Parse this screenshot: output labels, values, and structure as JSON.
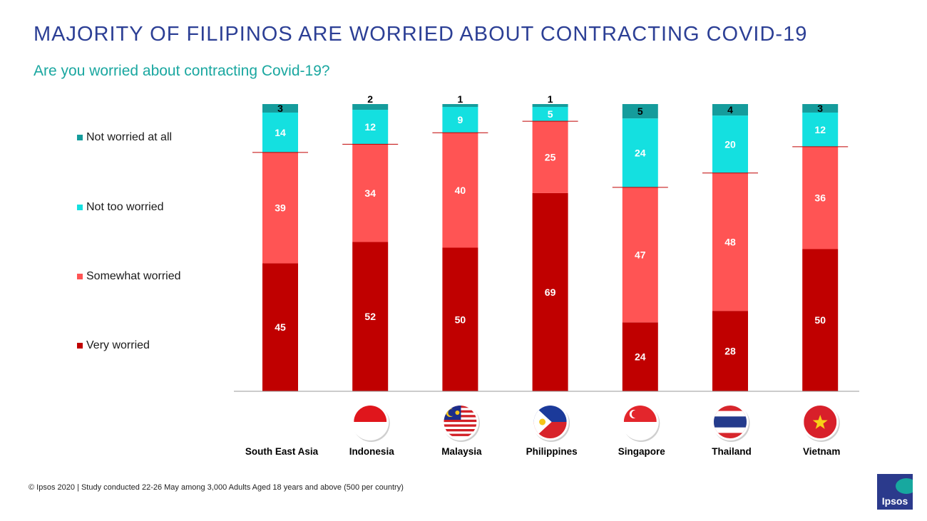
{
  "header": {
    "title": "MAJORITY OF FILIPINOS ARE WORRIED ABOUT CONTRACTING COVID-19",
    "subtitle": "Are you worried about contracting Covid-19?"
  },
  "legend": [
    {
      "label": "Not worried at all",
      "color": "#159c9c"
    },
    {
      "label": "Not too worried",
      "color": "#14e0e0"
    },
    {
      "label": "Somewhat worried",
      "color": "#ff5454"
    },
    {
      "label": "Very worried",
      "color": "#c00000"
    }
  ],
  "chart_data": {
    "type": "bar",
    "stacked": true,
    "title": "Are you worried about contracting Covid-19?",
    "categories": [
      "South East Asia",
      "Indonesia",
      "Malaysia",
      "Philippines",
      "Singapore",
      "Thailand",
      "Vietnam"
    ],
    "series": [
      {
        "name": "Very worried",
        "color": "#c00000",
        "values": [
          45,
          52,
          50,
          69,
          24,
          28,
          50
        ]
      },
      {
        "name": "Somewhat worried",
        "color": "#ff5454",
        "values": [
          39,
          34,
          40,
          25,
          47,
          48,
          36
        ]
      },
      {
        "name": "Not too worried",
        "color": "#14e0e0",
        "values": [
          14,
          12,
          9,
          5,
          24,
          20,
          12
        ]
      },
      {
        "name": "Not worried at all",
        "color": "#159c9c",
        "values": [
          3,
          2,
          1,
          1,
          5,
          4,
          3
        ]
      }
    ],
    "flags": [
      null,
      "indonesia-flag-icon",
      "malaysia-flag-icon",
      "philippines-flag-icon",
      "singapore-flag-icon",
      "thailand-flag-icon",
      "vietnam-flag-icon"
    ]
  },
  "footer": {
    "note": "© Ipsos 2020 | Study conducted 22-26 May among 3,000 Adults Aged 18 years and above (500 per country)",
    "logo_text": "Ipsos"
  }
}
